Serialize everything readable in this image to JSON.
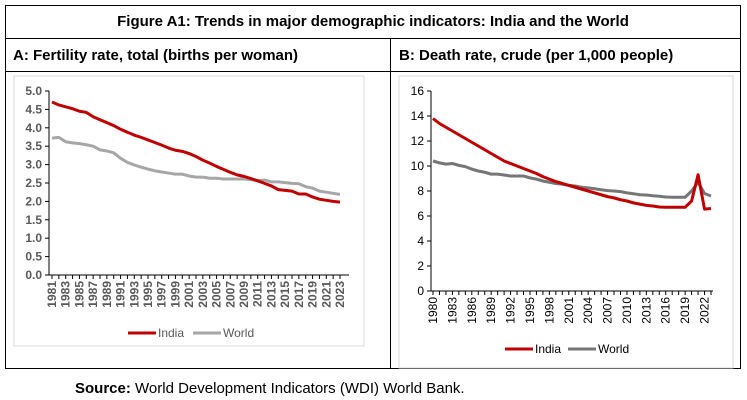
{
  "figure_title": "Figure A1: Trends in major demographic indicators: India and the World",
  "source_label": "Source:",
  "source_text": " World Development Indicators (WDI) World Bank.",
  "colors": {
    "india": "#C00000",
    "world_left": "#A6A6A6",
    "world_right": "#767676"
  },
  "chart_data": [
    {
      "type": "line",
      "title": "A: Fertility rate, total (births per woman)",
      "ylim": [
        0,
        5
      ],
      "yticks": [
        "0.0",
        "0.5",
        "1.0",
        "1.5",
        "2.0",
        "2.5",
        "3.0",
        "3.5",
        "4.0",
        "4.5",
        "5.0"
      ],
      "x": [
        1981,
        1982,
        1983,
        1984,
        1985,
        1986,
        1987,
        1988,
        1989,
        1990,
        1991,
        1992,
        1993,
        1994,
        1995,
        1996,
        1997,
        1998,
        1999,
        2000,
        2001,
        2002,
        2003,
        2004,
        2005,
        2006,
        2007,
        2008,
        2009,
        2010,
        2011,
        2012,
        2013,
        2014,
        2015,
        2016,
        2017,
        2018,
        2019,
        2020,
        2021,
        2022,
        2023
      ],
      "xtick_step": 2,
      "legend": "bottom",
      "series": [
        {
          "name": "India",
          "values": [
            4.7,
            4.62,
            4.57,
            4.52,
            4.45,
            4.42,
            4.3,
            4.22,
            4.14,
            4.06,
            3.96,
            3.88,
            3.8,
            3.74,
            3.67,
            3.6,
            3.53,
            3.45,
            3.39,
            3.36,
            3.3,
            3.22,
            3.12,
            3.04,
            2.95,
            2.87,
            2.79,
            2.72,
            2.68,
            2.62,
            2.56,
            2.49,
            2.42,
            2.32,
            2.3,
            2.28,
            2.2,
            2.2,
            2.12,
            2.06,
            2.03,
            2.0,
            1.98
          ]
        },
        {
          "name": "World",
          "values": [
            3.72,
            3.74,
            3.62,
            3.59,
            3.57,
            3.54,
            3.5,
            3.4,
            3.37,
            3.32,
            3.17,
            3.06,
            2.99,
            2.93,
            2.88,
            2.83,
            2.8,
            2.77,
            2.74,
            2.74,
            2.69,
            2.66,
            2.66,
            2.63,
            2.63,
            2.61,
            2.61,
            2.61,
            2.61,
            2.59,
            2.56,
            2.58,
            2.53,
            2.53,
            2.51,
            2.49,
            2.48,
            2.4,
            2.36,
            2.28,
            2.25,
            2.22,
            2.19
          ]
        }
      ]
    },
    {
      "type": "line",
      "title": "B: Death rate, crude (per 1,000 people)",
      "ylim": [
        0,
        16
      ],
      "yticks": [
        "0",
        "2",
        "4",
        "6",
        "8",
        "10",
        "12",
        "14",
        "16"
      ],
      "x": [
        1980,
        1981,
        1982,
        1983,
        1984,
        1985,
        1986,
        1987,
        1988,
        1989,
        1990,
        1991,
        1992,
        1993,
        1994,
        1995,
        1996,
        1997,
        1998,
        1999,
        2000,
        2001,
        2002,
        2003,
        2004,
        2005,
        2006,
        2007,
        2008,
        2009,
        2010,
        2011,
        2012,
        2013,
        2014,
        2015,
        2016,
        2017,
        2018,
        2019,
        2020,
        2021,
        2022,
        2023
      ],
      "xtick_step": 3,
      "legend": "bottom",
      "series": [
        {
          "name": "India",
          "values": [
            13.8,
            13.4,
            13.1,
            12.8,
            12.5,
            12.2,
            11.9,
            11.6,
            11.3,
            11.0,
            10.7,
            10.4,
            10.2,
            10.0,
            9.8,
            9.6,
            9.4,
            9.15,
            8.95,
            8.75,
            8.6,
            8.45,
            8.3,
            8.15,
            8.0,
            7.85,
            7.7,
            7.55,
            7.45,
            7.3,
            7.2,
            7.05,
            6.95,
            6.85,
            6.8,
            6.72,
            6.7,
            6.7,
            6.7,
            6.7,
            7.2,
            9.3,
            6.55,
            6.6
          ]
        },
        {
          "name": "World",
          "values": [
            10.4,
            10.25,
            10.15,
            10.2,
            10.05,
            9.95,
            9.75,
            9.6,
            9.5,
            9.35,
            9.35,
            9.28,
            9.2,
            9.2,
            9.2,
            9.05,
            8.95,
            8.8,
            8.7,
            8.6,
            8.55,
            8.45,
            8.4,
            8.3,
            8.25,
            8.18,
            8.1,
            8.03,
            8.0,
            7.95,
            7.85,
            7.78,
            7.7,
            7.68,
            7.62,
            7.58,
            7.52,
            7.5,
            7.5,
            7.5,
            8.0,
            8.7,
            7.8,
            7.6
          ]
        }
      ]
    }
  ]
}
